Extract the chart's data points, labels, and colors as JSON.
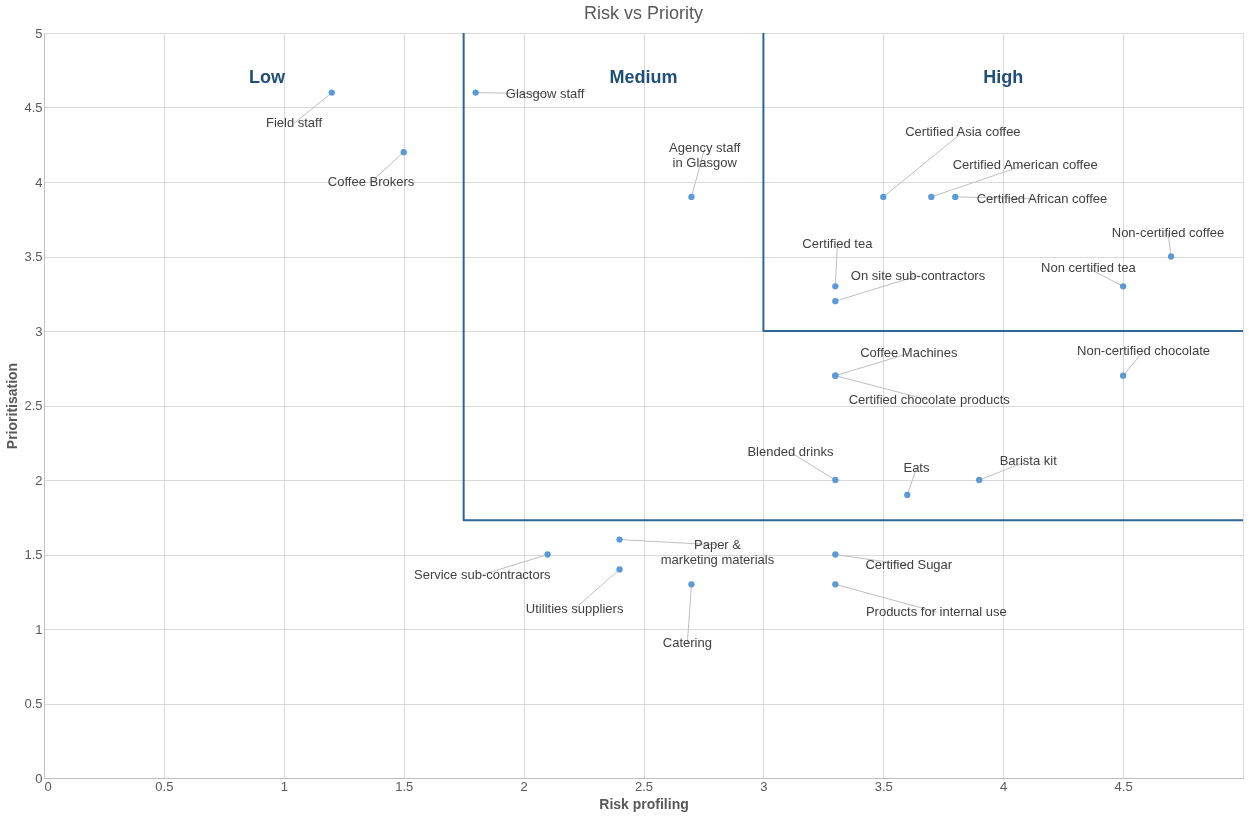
{
  "chart_data": {
    "type": "scatter",
    "title": "Risk vs Priority",
    "xlabel": "Risk profiling",
    "ylabel": "Prioritisation",
    "xlim": [
      0,
      5
    ],
    "ylim": [
      0,
      5
    ],
    "xticks": [
      0,
      0.5,
      1,
      1.5,
      2,
      2.5,
      3,
      3.5,
      4,
      4.5
    ],
    "yticks": [
      0,
      0.5,
      1,
      1.5,
      2,
      2.5,
      3,
      3.5,
      4,
      4.5,
      5
    ],
    "grid": true,
    "marker": "circle",
    "series": [
      {
        "type": "line",
        "marker": "none",
        "color": "#2e6496",
        "x": [
          1.75,
          1.75,
          5
        ],
        "values": [
          5,
          1.73,
          1.73
        ]
      },
      {
        "type": "line",
        "marker": "none",
        "color": "#2e6496",
        "x": [
          3,
          3,
          5
        ],
        "values": [
          5,
          3,
          3
        ]
      },
      {
        "color": "#5b9bd5",
        "x": [
          1.2,
          1.5,
          1.8,
          2.7,
          3.5,
          3.7,
          3.8,
          4.7,
          3.3,
          3.3,
          4.5,
          3.3,
          3.3,
          4.5,
          3.3,
          3.6,
          3.9,
          2.4,
          2.1,
          2.4,
          2.7,
          3.3,
          3.3
        ],
        "values": [
          4.6,
          4.2,
          4.6,
          3.9,
          3.9,
          3.9,
          3.9,
          3.5,
          3.3,
          3.2,
          3.3,
          2.7,
          2.7,
          2.7,
          2.0,
          1.9,
          2.0,
          1.6,
          1.5,
          1.4,
          1.3,
          1.5,
          1.3
        ],
        "value_labels": [
          "Field staff",
          "Coffee Brokers",
          "Glasgow staff",
          "Agency staff in Glasgow",
          "Certified Asia coffee",
          "Certified American coffee",
          "Certified African coffee",
          "Non-certified coffee",
          "Certified tea",
          "On site sub-contractors",
          "Non certified tea",
          "Coffee Machines",
          "Certified chocolate products",
          "Non-certified chocolate",
          "Blended drinks",
          "Eats",
          "Barista kit",
          "Paper & marketing materials",
          "Service sub-contractors",
          "Utilities suppliers",
          "Catering",
          "Certified Sugar",
          "Products for internal use"
        ]
      }
    ],
    "annotations": [
      "Low",
      "Medium",
      "High"
    ]
  }
}
